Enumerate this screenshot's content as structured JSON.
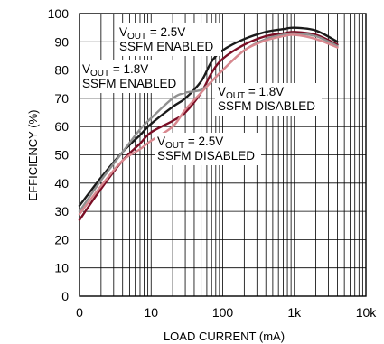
{
  "chart_data": {
    "type": "line",
    "title": "",
    "xlabel": "LOAD CURRENT (mA)",
    "ylabel": "EFFICIENCY (%)",
    "xscale": "log",
    "xlim": [
      1,
      10000
    ],
    "ylim": [
      0,
      100
    ],
    "x_tick_labels": [
      "0",
      "10",
      "100",
      "1k",
      "10k"
    ],
    "y_tick_labels": [
      "0",
      "10",
      "20",
      "30",
      "40",
      "50",
      "60",
      "70",
      "80",
      "90",
      "100"
    ],
    "grid": true,
    "series": [
      {
        "color": "#1a1a1a",
        "points": [
          [
            1,
            32
          ],
          [
            2,
            42
          ],
          [
            4,
            51
          ],
          [
            7,
            57
          ],
          [
            10,
            61
          ],
          [
            20,
            67
          ],
          [
            30,
            70
          ],
          [
            50,
            76
          ],
          [
            70,
            83
          ],
          [
            100,
            87
          ],
          [
            200,
            91
          ],
          [
            400,
            93.5
          ],
          [
            700,
            94.5
          ],
          [
            1000,
            95
          ],
          [
            2000,
            94
          ],
          [
            4000,
            90
          ]
        ]
      },
      {
        "color": "#7a0e25",
        "points": [
          [
            1,
            27
          ],
          [
            2,
            38
          ],
          [
            4,
            48
          ],
          [
            7,
            54
          ],
          [
            10,
            58
          ],
          [
            20,
            62
          ],
          [
            30,
            65
          ],
          [
            50,
            72
          ],
          [
            70,
            79
          ],
          [
            100,
            84
          ],
          [
            200,
            89
          ],
          [
            400,
            92
          ],
          [
            700,
            93
          ],
          [
            1000,
            93.5
          ],
          [
            2000,
            92.5
          ],
          [
            4000,
            89
          ]
        ]
      },
      {
        "color": "#909090",
        "points": [
          [
            1,
            30
          ],
          [
            2,
            41
          ],
          [
            4,
            51
          ],
          [
            7,
            59
          ],
          [
            10,
            63
          ],
          [
            20,
            70
          ],
          [
            30,
            72
          ],
          [
            50,
            73
          ],
          [
            70,
            76
          ],
          [
            100,
            80
          ],
          [
            200,
            87
          ],
          [
            400,
            91
          ],
          [
            700,
            92.5
          ],
          [
            1000,
            93
          ],
          [
            2000,
            92
          ],
          [
            4000,
            88.5
          ]
        ]
      },
      {
        "color": "#d9888f",
        "points": [
          [
            1,
            29
          ],
          [
            2,
            39
          ],
          [
            4,
            48
          ],
          [
            7,
            52
          ],
          [
            10,
            55
          ],
          [
            20,
            60
          ],
          [
            30,
            66
          ],
          [
            50,
            72
          ],
          [
            70,
            76
          ],
          [
            100,
            80
          ],
          [
            200,
            87
          ],
          [
            400,
            90.5
          ],
          [
            700,
            92
          ],
          [
            1000,
            92.5
          ],
          [
            2000,
            91
          ],
          [
            4000,
            88
          ]
        ]
      }
    ],
    "annotations": [
      {
        "name": "vout-2v5-enabled",
        "v": "V",
        "sub": "OUT",
        "rest": " = 2.5V",
        "line2": "SSFM ENABLED"
      },
      {
        "name": "vout-1v8-enabled",
        "v": "V",
        "sub": "OUT",
        "rest": " = 1.8V",
        "line2": "SSFM ENABLED"
      },
      {
        "name": "vout-1v8-disabled",
        "v": "V",
        "sub": "OUT",
        "rest": " = 1.8V",
        "line2": "SSFM DISABLED"
      },
      {
        "name": "vout-2v5-disabled",
        "v": "V",
        "sub": "OUT",
        "rest": " = 2.5V",
        "line2": "SSFM DISABLED"
      }
    ]
  }
}
